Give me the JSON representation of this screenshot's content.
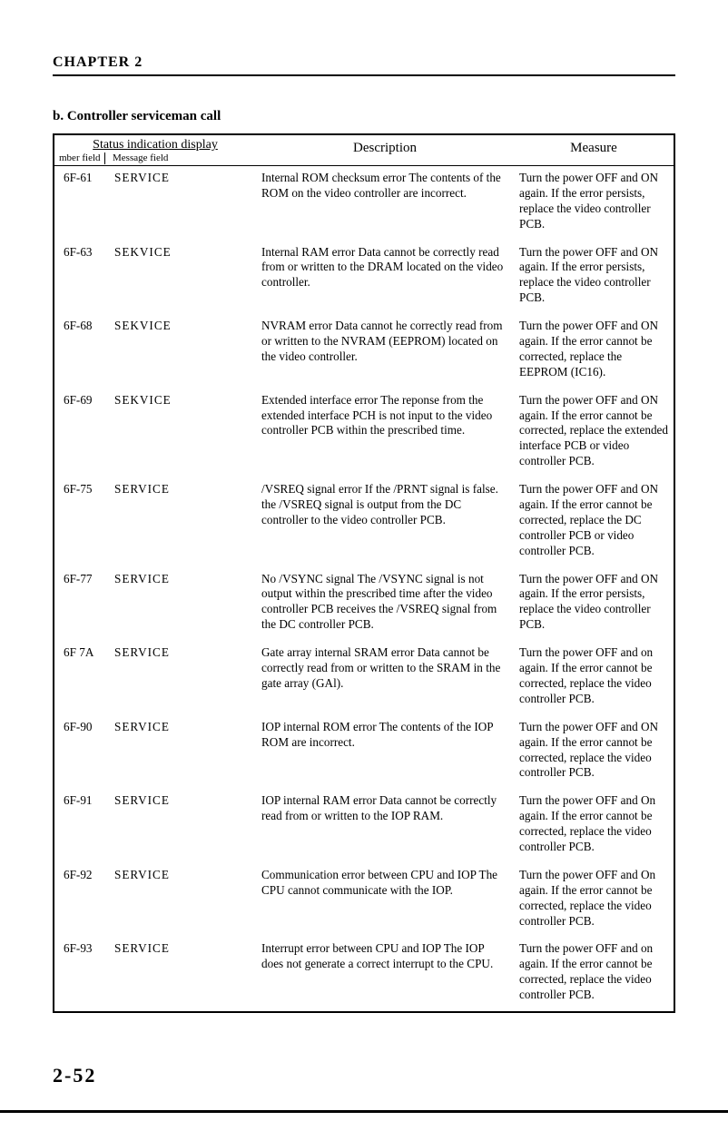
{
  "chapter_header": "CHAPTER 2",
  "section_title": "b. Controller serviceman call",
  "page_number": "2-52",
  "table": {
    "header": {
      "status_top": "Status indication display",
      "status_sub_left": "mber field",
      "status_sub_right": "Message field",
      "description": "Description",
      "measure": "Measure"
    },
    "rows": [
      {
        "code": "6F-61",
        "message": "SERVICE",
        "description": "Internal ROM checksum error\nThe contents of the ROM on the video controller are incorrect.",
        "measure": "Turn the power OFF and ON again. If the error persists, replace the video controller PCB."
      },
      {
        "code": "6F-63",
        "message": "SEKVICE",
        "description": "Internal RAM error\nData cannot be correctly read from or written to the DRAM located on the video controller.",
        "measure": "Turn the power OFF and ON again. If the error persists, replace the video controller PCB."
      },
      {
        "code": "6F-68",
        "message": "SEKVICE",
        "description": "NVRAM error\nData cannot he correctly read from or written to the NVRAM (EEPROM) located on the video controller.",
        "measure": "Turn the power OFF and ON again. If the error cannot be corrected, replace the EEPROM (IC16)."
      },
      {
        "code": "6F-69",
        "message": "SEKVICE",
        "description": "Extended interface error\nThe reponse from the extended interface PCH is not input to the video controller PCB within the prescribed time.",
        "measure": "Turn the power OFF and ON again. If the error cannot be corrected, replace the extended interface PCB or video controller PCB."
      },
      {
        "code": "6F-75",
        "message": "SERVICE",
        "description": "/VSREQ signal error\nIf the /PRNT signal is false. the /VSREQ signal is output from the DC controller to the video controller PCB.",
        "measure": "Turn the power OFF and ON again. If the error cannot be corrected, replace the DC controller PCB or video controller PCB."
      },
      {
        "code": "6F-77",
        "message": "SERVICE",
        "description": "No /VSYNC signal\nThe /VSYNC signal is not output within the prescribed time after the video controller PCB receives the /VSREQ signal from the DC controller PCB.",
        "measure": "Turn the power OFF and ON again. If the error persists, replace the video controller PCB."
      },
      {
        "code": "6F 7A",
        "message": "SERVICE",
        "description": "Gate array internal SRAM error\nData cannot be correctly read from or written to the SRAM in the gate array (GAl).",
        "measure": "Turn the power OFF and on again. If the error cannot be corrected, replace the video controller PCB."
      },
      {
        "code": "6F-90",
        "message": "SERVICE",
        "description": "IOP internal ROM error\nThe contents of the IOP ROM are incorrect.",
        "measure": "Turn the power OFF and ON again. If the error cannot be corrected, replace the video controller PCB."
      },
      {
        "code": "6F-91",
        "message": "SERVICE",
        "description": "IOP internal RAM error\nData cannot be correctly read from or written to the IOP RAM.",
        "measure": "Turn the power OFF and On again. If the error cannot be corrected, replace the video controller PCB."
      },
      {
        "code": "6F-92",
        "message": "SERVICE",
        "description": "Communication error between CPU and IOP\nThe CPU cannot communicate with the IOP.",
        "measure": "Turn the power OFF and On again. If the error cannot be corrected, replace the video controller PCB."
      },
      {
        "code": "6F-93",
        "message": "SERVICE",
        "description": "Interrupt error between CPU and IOP\nThe IOP does not generate a correct interrupt to the CPU.",
        "measure": "Turn the power OFF and on again. If the error cannot be corrected, replace the video controller PCB."
      }
    ]
  }
}
